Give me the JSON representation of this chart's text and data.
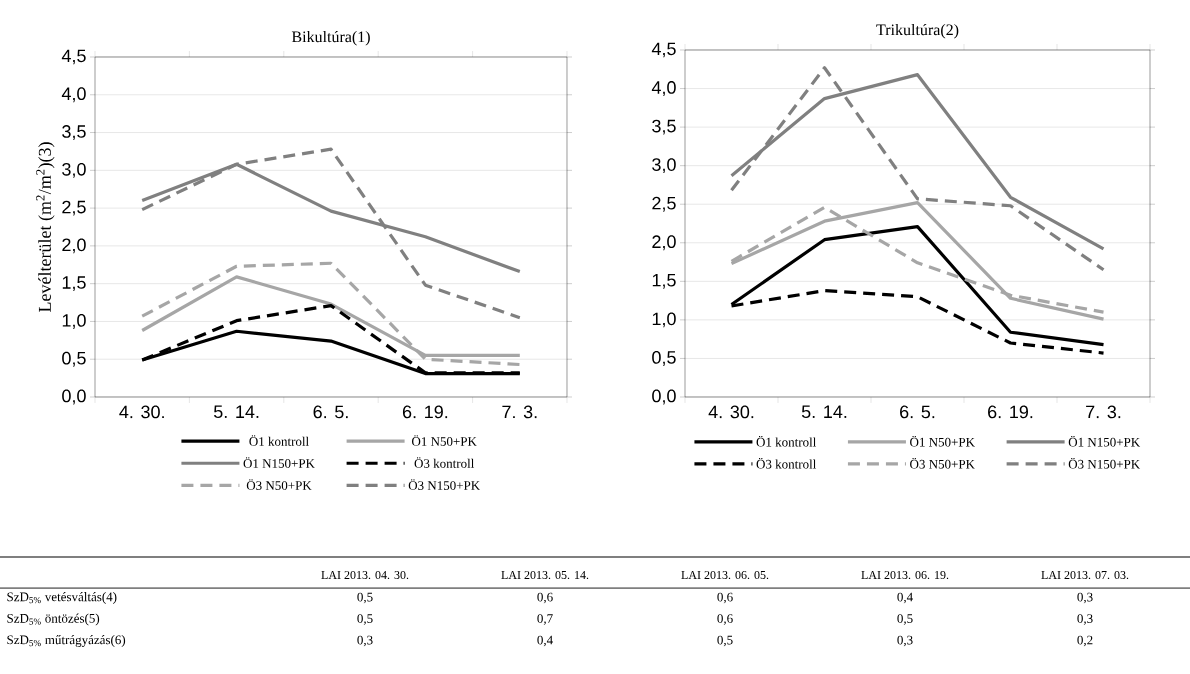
{
  "chart_data": [
    {
      "type": "line",
      "title": "Bikultúra(1)",
      "ylabel": "Levélterület (m$^{2}$/m$^{2}$)(3)",
      "categories": [
        "4. 30.",
        "5. 14.",
        "6. 5.",
        "6. 19.",
        "7. 3."
      ],
      "ylim": [
        0,
        4.5
      ],
      "yticks": [
        {
          "value": 0,
          "label": "0,0"
        },
        {
          "value": 0.5,
          "label": "0,5"
        },
        {
          "value": 1,
          "label": "1,0"
        },
        {
          "value": 1.5,
          "label": "1,5"
        },
        {
          "value": 2,
          "label": "2,0"
        },
        {
          "value": 2.5,
          "label": "2,5"
        },
        {
          "value": 3,
          "label": "3,0"
        },
        {
          "value": 3.5,
          "label": "3,5"
        },
        {
          "value": 4,
          "label": "4,0"
        },
        {
          "value": 4.5,
          "label": "4,5"
        }
      ],
      "grid": "y",
      "legend": "bottom",
      "series": [
        {
          "name": "Ö1 kontroll",
          "color": "#000000",
          "line_style": "solid",
          "values": [
            0.49,
            0.87,
            0.74,
            0.31,
            0.31
          ]
        },
        {
          "name": "Ö1 N50+PK",
          "color": "#a6a6a6",
          "line_style": "solid",
          "values": [
            0.88,
            1.59,
            1.23,
            0.55,
            0.55
          ]
        },
        {
          "name": "Ö1 N150+PK",
          "color": "#808080",
          "line_style": "solid",
          "values": [
            2.6,
            3.08,
            2.46,
            2.12,
            1.66
          ]
        },
        {
          "name": "Ö3 kontroll",
          "color": "#000000",
          "line_style": "dashed",
          "values": [
            0.49,
            1.01,
            1.21,
            0.32,
            0.32
          ]
        },
        {
          "name": "Ö3 N50+PK",
          "color": "#a6a6a6",
          "line_style": "dashed",
          "values": [
            1.07,
            1.73,
            1.77,
            0.5,
            0.43
          ]
        },
        {
          "name": "Ö3 N150+PK",
          "color": "#808080",
          "line_style": "dashed",
          "values": [
            2.48,
            3.08,
            3.28,
            1.48,
            1.05
          ]
        }
      ]
    },
    {
      "type": "line",
      "title": "Trikultúra(2)",
      "categories": [
        "4. 30.",
        "5. 14.",
        "6. 5.",
        "6. 19.",
        "7. 3."
      ],
      "ylim": [
        0,
        4.5
      ],
      "yticks": [
        {
          "value": 0,
          "label": "0,0"
        },
        {
          "value": 0.5,
          "label": "0,5"
        },
        {
          "value": 1,
          "label": "1,0"
        },
        {
          "value": 1.5,
          "label": "1,5"
        },
        {
          "value": 2,
          "label": "2,0"
        },
        {
          "value": 2.5,
          "label": "2,5"
        },
        {
          "value": 3,
          "label": "3,0"
        },
        {
          "value": 3.5,
          "label": "3,5"
        },
        {
          "value": 4,
          "label": "4,0"
        },
        {
          "value": 4.5,
          "label": "4,5"
        }
      ],
      "grid": "y",
      "legend": "bottom",
      "series": [
        {
          "name": "Ö1 kontroll",
          "color": "#000000",
          "line_style": "solid",
          "values": [
            1.2,
            2.04,
            2.21,
            0.84,
            0.68
          ]
        },
        {
          "name": "Ö1 N50+PK",
          "color": "#a6a6a6",
          "line_style": "solid",
          "values": [
            1.73,
            2.28,
            2.52,
            1.28,
            1.01
          ]
        },
        {
          "name": "Ö1 N150+PK",
          "color": "#808080",
          "line_style": "solid",
          "values": [
            2.87,
            3.87,
            4.18,
            2.59,
            1.92
          ]
        },
        {
          "name": "Ö3 kontroll",
          "color": "#000000",
          "line_style": "dashed",
          "values": [
            1.18,
            1.38,
            1.3,
            0.7,
            0.57
          ]
        },
        {
          "name": "Ö3 N50+PK",
          "color": "#a6a6a6",
          "line_style": "dashed",
          "values": [
            1.76,
            2.46,
            1.74,
            1.32,
            1.1
          ]
        },
        {
          "name": "Ö3 N150+PK",
          "color": "#808080",
          "line_style": "dashed",
          "values": [
            2.68,
            4.27,
            2.57,
            2.48,
            1.65
          ]
        }
      ]
    },
    {
      "type": "other",
      "categories": [
        "LAI 2013. 04. 30.",
        "LAI 2013. 05. 14.",
        "LAI 2013. 06. 05.",
        "LAI 2013. 06. 19.",
        "LAI 2013. 07. 03."
      ],
      "y_categories": [
        "SzD$_{5%}$ vetésváltás(4)",
        "SzD$_{5%}$ öntözés(5)",
        "SzD$_{5%}$ műtrágyázás(6)"
      ],
      "cell_labels": [
        [
          "0,5",
          "0,6",
          "0,6",
          "0,4",
          "0,3"
        ],
        [
          "0,5",
          "0,7",
          "0,6",
          "0,5",
          "0,3"
        ],
        [
          "0,3",
          "0,4",
          "0,5",
          "0,3",
          "0,2"
        ]
      ]
    }
  ]
}
